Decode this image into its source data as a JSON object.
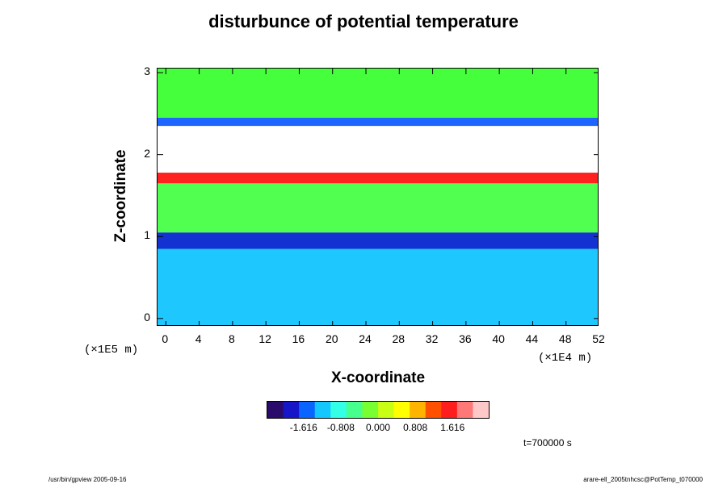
{
  "chart_data": {
    "type": "heatmap",
    "title": "disturbunce of potential temperature",
    "xlabel": "X-coordinate",
    "ylabel": "Z-coordinate",
    "x_unit": "(×1E4 m)",
    "y_unit": "(×1E5 m)",
    "xlim": [
      -1,
      52
    ],
    "ylim": [
      -0.1,
      3.05
    ],
    "x_ticks": [
      "0",
      "4",
      "8",
      "12",
      "16",
      "20",
      "24",
      "28",
      "32",
      "36",
      "40",
      "44",
      "48",
      "52"
    ],
    "y_ticks": [
      "0",
      "1",
      "2",
      "3"
    ],
    "colorbar": {
      "range": [
        -2.4,
        2.4
      ],
      "tick_labels": [
        "-1.616",
        "-0.808",
        "0.000",
        "0.808",
        "1.616"
      ],
      "colors": [
        "#2a0a6a",
        "#1616c8",
        "#0a64ff",
        "#14c8ff",
        "#32ffe6",
        "#46ff8c",
        "#78ff32",
        "#c8ff14",
        "#ffff00",
        "#ffb400",
        "#ff5000",
        "#ff1e1e",
        "#ff7878",
        "#ffc8c8"
      ]
    },
    "field_bands": [
      {
        "z_from": -0.1,
        "z_to": 0.9,
        "level": "-0.6",
        "color": "#1ec8ff"
      },
      {
        "z_from": 0.85,
        "z_to": 1.05,
        "level": "-1.5",
        "color": "#1432d2"
      },
      {
        "z_from": 1.05,
        "z_to": 1.7,
        "level": "0.2",
        "color": "#50ff50"
      },
      {
        "z_from": 1.65,
        "z_to": 1.78,
        "level": "1.5",
        "color": "#ff2020"
      },
      {
        "z_from": 1.78,
        "z_to": 2.35,
        "level": "above range",
        "color": "#ffffff"
      },
      {
        "z_from": 2.35,
        "z_to": 2.45,
        "level": "-1.0",
        "color": "#1e64ff"
      },
      {
        "z_from": 2.45,
        "z_to": 3.05,
        "level": "0.3",
        "color": "#46ff3c"
      }
    ],
    "time_label": "t=700000 s"
  },
  "footer": {
    "left": "/usr/bin/gpview 2005-09-16",
    "right": "arare-ell_2005tnhcsc@PotTemp_t070000"
  }
}
